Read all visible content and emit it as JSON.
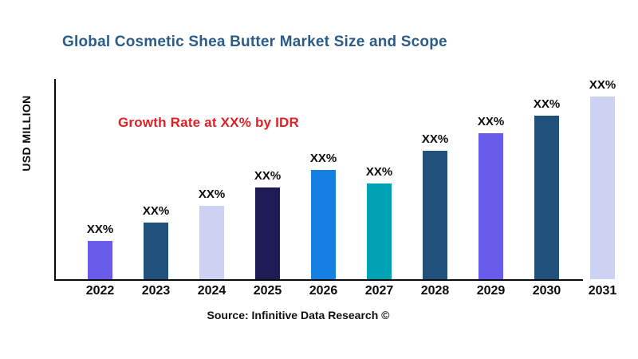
{
  "header": {
    "title": "Global Cosmetic Shea Butter Market Size and Scope",
    "title_color": "#2b5c88"
  },
  "annotation": {
    "text": "Growth Rate at XX% by IDR",
    "color": "#e31e25"
  },
  "footer": {
    "source": "Source: Infinitive Data Research ©"
  },
  "chart_data": {
    "type": "bar",
    "title": "Global Cosmetic Shea Butter Market Size and Scope",
    "xlabel": "",
    "ylabel": "USD MILLION",
    "categories": [
      "2022",
      "2023",
      "2024",
      "2025",
      "2026",
      "2027",
      "2028",
      "2029",
      "2030",
      "2031"
    ],
    "values": [
      19,
      28,
      36.5,
      45.5,
      54.5,
      47.5,
      64,
      72.5,
      81.5,
      91
    ],
    "values_note": "Actual values are masked as XX% in the chart; values are estimated relative bar heights in % of plot height",
    "bar_labels": [
      "XX%",
      "XX%",
      "XX%",
      "XX%",
      "XX%",
      "XX%",
      "XX%",
      "XX%",
      "XX%",
      "XX%"
    ],
    "bar_colors": [
      "#6a5ceb",
      "#20507c",
      "#cdd2f3",
      "#1f1b55",
      "#1580e2",
      "#00a2b3",
      "#20507c",
      "#6a5ceb",
      "#20507c",
      "#cdd2f3"
    ],
    "annotation": "Growth Rate at XX% by IDR",
    "ylim": [
      0,
      100
    ],
    "grid": false,
    "legend": false
  }
}
